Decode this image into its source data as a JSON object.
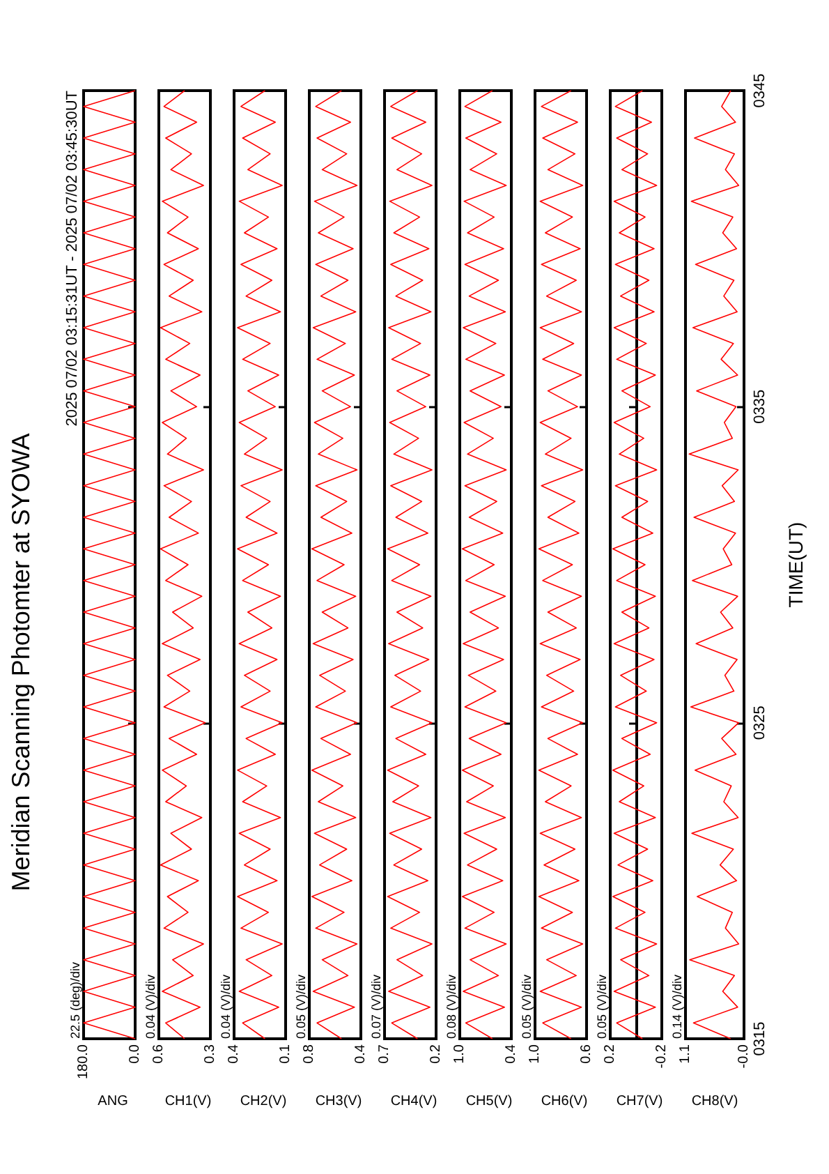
{
  "chart_data": [
    {
      "type": "line",
      "title": "Meridian Scanning Photomter at SYOWA",
      "subtitle": "2025 07/02 03:15:31UT - 2025 07/02 03:45:30UT",
      "annotations": [
        "22.5 (deg)/div"
      ],
      "xlabel": "ANG",
      "color": "#ff0000",
      "tick_labels": "x",
      "ylim": [
        315,
        345
      ],
      "yticks": [
        {
          "value": 325,
          "label": null
        },
        {
          "value": 335,
          "label": null
        }
      ],
      "xlim": [
        180,
        0
      ],
      "xticks": [
        {
          "value": 180,
          "label": "180.0"
        },
        {
          "value": 0,
          "label": "0.0"
        }
      ],
      "values": [
        315,
        315.5,
        316,
        316.5,
        317,
        317.5,
        318,
        318.5,
        319,
        319.5,
        320,
        320.5,
        321,
        321.5,
        322,
        322.5,
        323,
        323.5,
        324,
        324.5,
        325,
        325.5,
        326,
        326.5,
        327,
        327.5,
        328,
        328.5,
        329,
        329.5,
        330,
        330.5,
        331,
        331.5,
        332,
        332.5,
        333,
        333.5,
        334,
        334.5,
        335,
        335.5,
        336,
        336.5,
        337,
        337.5,
        338,
        338.5,
        339,
        339.5,
        340,
        340.5,
        341,
        341.5,
        342,
        342.5,
        343,
        343.5,
        344,
        344.5,
        345
      ],
      "x": [
        0,
        180,
        0,
        180,
        0,
        180,
        0,
        180,
        0,
        180,
        0,
        180,
        0,
        180,
        0,
        180,
        0,
        180,
        0,
        180,
        0,
        180,
        0,
        180,
        0,
        180,
        0,
        180,
        0,
        180,
        0,
        180,
        0,
        180,
        0,
        180,
        0,
        180,
        0,
        180,
        0,
        180,
        0,
        180,
        0,
        180,
        0,
        180,
        0,
        180,
        0,
        180,
        0,
        180,
        0,
        180,
        0,
        180,
        0,
        180,
        0
      ]
    },
    {
      "type": "line",
      "annotations": [
        "0.04 (V)/div"
      ],
      "xlabel": "CH1(V)",
      "color": "#ff0000",
      "tick_labels": "x",
      "ylim": [
        315,
        345
      ],
      "yticks": [
        {
          "value": 325,
          "label": null
        },
        {
          "value": 335,
          "label": null
        }
      ],
      "xlim": [
        0.6,
        0.3
      ],
      "xticks": [
        0.6,
        0.3
      ],
      "values": [
        315,
        315.5,
        316,
        316.5,
        317,
        317.5,
        318,
        318.5,
        319,
        319.5,
        320,
        320.5,
        321,
        321.5,
        322,
        322.5,
        323,
        323.5,
        324,
        324.5,
        325,
        325.5,
        326,
        326.5,
        327,
        327.5,
        328,
        328.5,
        329,
        329.5,
        330,
        330.5,
        331,
        331.5,
        332,
        332.5,
        333,
        333.5,
        334,
        334.5,
        335,
        335.5,
        336,
        336.5,
        337,
        337.5,
        338,
        338.5,
        339,
        339.5,
        340,
        340.5,
        341,
        341.5,
        342,
        342.5,
        343,
        343.5,
        344,
        344.5,
        345
      ],
      "x": [
        0.45,
        0.56,
        0.36,
        0.58,
        0.4,
        0.52,
        0.34,
        0.57,
        0.43,
        0.55,
        0.37,
        0.59,
        0.41,
        0.53,
        0.35,
        0.56,
        0.44,
        0.58,
        0.38,
        0.54,
        0.33,
        0.57,
        0.42,
        0.55,
        0.36,
        0.58,
        0.4,
        0.52,
        0.35,
        0.56,
        0.43,
        0.59,
        0.37,
        0.54,
        0.41,
        0.57,
        0.34,
        0.55,
        0.44,
        0.58,
        0.38,
        0.53,
        0.36,
        0.56,
        0.42,
        0.59,
        0.35,
        0.54,
        0.4,
        0.57,
        0.37,
        0.55,
        0.43,
        0.58,
        0.34,
        0.53,
        0.41,
        0.56,
        0.38,
        0.57,
        0.45
      ]
    },
    {
      "type": "line",
      "annotations": [
        "0.04 (V)/div"
      ],
      "xlabel": "CH2(V)",
      "color": "#ff0000",
      "tick_labels": "x",
      "ylim": [
        315,
        345
      ],
      "yticks": [
        {
          "value": 325,
          "label": null
        },
        {
          "value": 335,
          "label": null
        }
      ],
      "xlim": [
        0.4,
        0.1
      ],
      "xticks": [
        0.4,
        0.1
      ],
      "values": [
        315,
        315.5,
        316,
        316.5,
        317,
        317.5,
        318,
        318.5,
        319,
        319.5,
        320,
        320.5,
        321,
        321.5,
        322,
        322.5,
        323,
        323.5,
        324,
        324.5,
        325,
        325.5,
        326,
        326.5,
        327,
        327.5,
        328,
        328.5,
        329,
        329.5,
        330,
        330.5,
        331,
        331.5,
        332,
        332.5,
        333,
        333.5,
        334,
        334.5,
        335,
        335.5,
        336,
        336.5,
        337,
        337.5,
        338,
        338.5,
        339,
        339.5,
        340,
        340.5,
        341,
        341.5,
        342,
        342.5,
        343,
        343.5,
        344,
        344.5,
        345
      ],
      "x": [
        0.22,
        0.35,
        0.14,
        0.37,
        0.18,
        0.33,
        0.12,
        0.36,
        0.2,
        0.38,
        0.15,
        0.34,
        0.19,
        0.37,
        0.13,
        0.35,
        0.21,
        0.38,
        0.16,
        0.33,
        0.12,
        0.36,
        0.19,
        0.34,
        0.15,
        0.37,
        0.18,
        0.32,
        0.13,
        0.35,
        0.2,
        0.38,
        0.15,
        0.33,
        0.19,
        0.36,
        0.12,
        0.34,
        0.21,
        0.37,
        0.16,
        0.32,
        0.14,
        0.35,
        0.19,
        0.38,
        0.13,
        0.33,
        0.18,
        0.36,
        0.15,
        0.34,
        0.2,
        0.37,
        0.12,
        0.32,
        0.19,
        0.35,
        0.16,
        0.36,
        0.22
      ]
    },
    {
      "type": "line",
      "annotations": [
        "0.05 (V)/div"
      ],
      "xlabel": "CH3(V)",
      "color": "#ff0000",
      "tick_labels": "x",
      "ylim": [
        315,
        345
      ],
      "yticks": [
        {
          "value": 325,
          "label": null
        },
        {
          "value": 335,
          "label": null
        }
      ],
      "xlim": [
        0.8,
        0.4
      ],
      "xticks": [
        0.8,
        0.4
      ],
      "values": [
        315,
        315.5,
        316,
        316.5,
        317,
        317.5,
        318,
        318.5,
        319,
        319.5,
        320,
        320.5,
        321,
        321.5,
        322,
        322.5,
        323,
        323.5,
        324,
        324.5,
        325,
        325.5,
        326,
        326.5,
        327,
        327.5,
        328,
        328.5,
        329,
        329.5,
        330,
        330.5,
        331,
        331.5,
        332,
        332.5,
        333,
        333.5,
        334,
        334.5,
        335,
        335.5,
        336,
        336.5,
        337,
        337.5,
        338,
        338.5,
        339,
        339.5,
        340,
        340.5,
        341,
        341.5,
        342,
        342.5,
        343,
        343.5,
        344,
        344.5,
        345
      ],
      "x": [
        0.55,
        0.74,
        0.45,
        0.77,
        0.5,
        0.7,
        0.43,
        0.75,
        0.53,
        0.78,
        0.47,
        0.72,
        0.51,
        0.76,
        0.44,
        0.73,
        0.54,
        0.78,
        0.48,
        0.71,
        0.43,
        0.75,
        0.52,
        0.72,
        0.46,
        0.77,
        0.5,
        0.7,
        0.44,
        0.74,
        0.53,
        0.78,
        0.47,
        0.71,
        0.51,
        0.75,
        0.43,
        0.73,
        0.54,
        0.76,
        0.48,
        0.7,
        0.45,
        0.74,
        0.52,
        0.77,
        0.44,
        0.71,
        0.5,
        0.75,
        0.46,
        0.73,
        0.53,
        0.76,
        0.43,
        0.7,
        0.51,
        0.74,
        0.48,
        0.75,
        0.55
      ]
    },
    {
      "type": "line",
      "annotations": [
        "0.07 (V)/div"
      ],
      "xlabel": "CH4(V)",
      "color": "#ff0000",
      "tick_labels": "x",
      "ylim": [
        315,
        345
      ],
      "yticks": [
        {
          "value": 325,
          "label": null
        },
        {
          "value": 335,
          "label": null
        }
      ],
      "xlim": [
        0.7,
        0.2
      ],
      "xticks": [
        0.7,
        0.2
      ],
      "values": [
        315,
        315.5,
        316,
        316.5,
        317,
        317.5,
        318,
        318.5,
        319,
        319.5,
        320,
        320.5,
        321,
        321.5,
        322,
        322.5,
        323,
        323.5,
        324,
        324.5,
        325,
        325.5,
        326,
        326.5,
        327,
        327.5,
        328,
        328.5,
        329,
        329.5,
        330,
        330.5,
        331,
        331.5,
        332,
        332.5,
        333,
        333.5,
        334,
        334.5,
        335,
        335.5,
        336,
        336.5,
        337,
        337.5,
        338,
        338.5,
        339,
        339.5,
        340,
        340.5,
        341,
        341.5,
        342,
        342.5,
        343,
        343.5,
        344,
        344.5,
        345
      ],
      "x": [
        0.38,
        0.63,
        0.26,
        0.66,
        0.33,
        0.58,
        0.24,
        0.64,
        0.36,
        0.67,
        0.28,
        0.61,
        0.34,
        0.65,
        0.25,
        0.62,
        0.37,
        0.67,
        0.3,
        0.59,
        0.24,
        0.64,
        0.35,
        0.6,
        0.27,
        0.66,
        0.33,
        0.58,
        0.25,
        0.63,
        0.36,
        0.67,
        0.28,
        0.59,
        0.34,
        0.64,
        0.24,
        0.61,
        0.37,
        0.65,
        0.3,
        0.58,
        0.26,
        0.63,
        0.35,
        0.66,
        0.25,
        0.59,
        0.33,
        0.64,
        0.27,
        0.61,
        0.36,
        0.65,
        0.24,
        0.58,
        0.34,
        0.63,
        0.3,
        0.64,
        0.38
      ]
    },
    {
      "type": "line",
      "annotations": [
        "0.08 (V)/div"
      ],
      "xlabel": "CH5(V)",
      "color": "#ff0000",
      "tick_labels": "x",
      "ylim": [
        315,
        345
      ],
      "yticks": [
        {
          "value": 325,
          "label": null
        },
        {
          "value": 335,
          "label": null
        }
      ],
      "xlim": [
        1.0,
        0.4
      ],
      "xticks": [
        {
          "value": 1.0,
          "label": "1.0"
        },
        0.4
      ],
      "values": [
        315,
        315.5,
        316,
        316.5,
        317,
        317.5,
        318,
        318.5,
        319,
        319.5,
        320,
        320.5,
        321,
        321.5,
        322,
        322.5,
        323,
        323.5,
        324,
        324.5,
        325,
        325.5,
        326,
        326.5,
        327,
        327.5,
        328,
        328.5,
        329,
        329.5,
        330,
        330.5,
        331,
        331.5,
        332,
        332.5,
        333,
        333.5,
        334,
        334.5,
        335,
        335.5,
        336,
        336.5,
        337,
        337.5,
        338,
        338.5,
        339,
        339.5,
        340,
        340.5,
        341,
        341.5,
        342,
        342.5,
        343,
        343.5,
        344,
        344.5,
        345
      ],
      "x": [
        0.62,
        0.93,
        0.48,
        0.96,
        0.55,
        0.88,
        0.46,
        0.94,
        0.6,
        0.97,
        0.5,
        0.91,
        0.57,
        0.95,
        0.47,
        0.92,
        0.61,
        0.97,
        0.52,
        0.89,
        0.46,
        0.94,
        0.58,
        0.9,
        0.49,
        0.96,
        0.55,
        0.88,
        0.47,
        0.93,
        0.6,
        0.97,
        0.5,
        0.89,
        0.57,
        0.94,
        0.46,
        0.91,
        0.61,
        0.95,
        0.52,
        0.88,
        0.48,
        0.93,
        0.58,
        0.96,
        0.47,
        0.89,
        0.55,
        0.94,
        0.49,
        0.91,
        0.6,
        0.95,
        0.46,
        0.88,
        0.57,
        0.93,
        0.52,
        0.94,
        0.62
      ]
    },
    {
      "type": "line",
      "annotations": [
        "0.05 (V)/div"
      ],
      "xlabel": "CH6(V)",
      "color": "#ff0000",
      "tick_labels": "x",
      "ylim": [
        315,
        345
      ],
      "yticks": [
        {
          "value": 325,
          "label": null
        },
        {
          "value": 335,
          "label": null
        }
      ],
      "xlim": [
        1.0,
        0.6
      ],
      "xticks": [
        {
          "value": 1.0,
          "label": "1.0"
        },
        0.6
      ],
      "values": [
        315,
        315.5,
        316,
        316.5,
        317,
        317.5,
        318,
        318.5,
        319,
        319.5,
        320,
        320.5,
        321,
        321.5,
        322,
        322.5,
        323,
        323.5,
        324,
        324.5,
        325,
        325.5,
        326,
        326.5,
        327,
        327.5,
        328,
        328.5,
        329,
        329.5,
        330,
        330.5,
        331,
        331.5,
        332,
        332.5,
        333,
        333.5,
        334,
        334.5,
        335,
        335.5,
        336,
        336.5,
        337,
        337.5,
        338,
        338.5,
        339,
        339.5,
        340,
        340.5,
        341,
        341.5,
        342,
        342.5,
        343,
        343.5,
        344,
        344.5,
        345
      ],
      "x": [
        0.72,
        0.94,
        0.64,
        0.96,
        0.68,
        0.91,
        0.63,
        0.95,
        0.71,
        0.97,
        0.66,
        0.93,
        0.69,
        0.96,
        0.64,
        0.92,
        0.72,
        0.97,
        0.67,
        0.9,
        0.63,
        0.95,
        0.7,
        0.91,
        0.65,
        0.96,
        0.68,
        0.9,
        0.64,
        0.94,
        0.71,
        0.97,
        0.66,
        0.9,
        0.69,
        0.95,
        0.63,
        0.92,
        0.72,
        0.96,
        0.67,
        0.9,
        0.64,
        0.94,
        0.7,
        0.96,
        0.64,
        0.91,
        0.68,
        0.95,
        0.65,
        0.92,
        0.71,
        0.96,
        0.63,
        0.9,
        0.69,
        0.94,
        0.67,
        0.95,
        0.72
      ]
    },
    {
      "type": "line",
      "annotations": [
        "0.05 (V)/div"
      ],
      "xlabel": "CH7(V)",
      "color": "#ff0000",
      "tick_labels": "x",
      "ylim": [
        315,
        345
      ],
      "yticks": [
        {
          "value": 325,
          "label": null
        },
        {
          "value": 335,
          "label": null
        }
      ],
      "xlim": [
        0.2,
        -0.2
      ],
      "xticks": [
        0.2,
        -0.2
      ],
      "values": [
        315,
        315.5,
        316,
        316.5,
        317,
        317.5,
        318,
        318.5,
        319,
        319.5,
        320,
        320.5,
        321,
        321.5,
        322,
        322.5,
        323,
        323.5,
        324,
        324.5,
        325,
        325.5,
        326,
        326.5,
        327,
        327.5,
        328,
        328.5,
        329,
        329.5,
        330,
        330.5,
        331,
        331.5,
        332,
        332.5,
        333,
        333.5,
        334,
        334.5,
        335,
        335.5,
        336,
        336.5,
        337,
        337.5,
        338,
        338.5,
        339,
        339.5,
        340,
        340.5,
        341,
        341.5,
        342,
        342.5,
        343,
        343.5,
        344,
        344.5,
        345
      ],
      "x": [
        -0.05,
        0.15,
        -0.15,
        0.17,
        -0.1,
        0.12,
        -0.16,
        0.16,
        -0.07,
        0.18,
        -0.13,
        0.14,
        -0.09,
        0.17,
        -0.15,
        0.13,
        -0.06,
        0.18,
        -0.11,
        0.11,
        -0.16,
        0.16,
        -0.08,
        0.12,
        -0.14,
        0.17,
        -0.1,
        0.11,
        -0.15,
        0.15,
        -0.07,
        0.18,
        -0.13,
        0.11,
        -0.09,
        0.16,
        -0.16,
        0.13,
        -0.06,
        0.17,
        -0.11,
        0.11,
        -0.15,
        0.15,
        -0.08,
        0.17,
        -0.14,
        0.12,
        -0.1,
        0.16,
        -0.14,
        0.13,
        -0.07,
        0.17,
        -0.16,
        0.11,
        -0.09,
        0.15,
        -0.12,
        0.16,
        -0.05
      ]
    },
    {
      "type": "line",
      "annotations": [
        "0.14 (V)/div"
      ],
      "xlabel": "CH8(V)",
      "ylabel": "TIME(UT)",
      "color": "#ff0000",
      "ylim": [
        315,
        345
      ],
      "yticks": [
        {
          "value": 315,
          "label": "0315"
        },
        {
          "value": 325,
          "label": "0325"
        },
        {
          "value": 335,
          "label": "0335"
        },
        {
          "value": 345,
          "label": "0345"
        }
      ],
      "xlim": [
        1.1,
        0
      ],
      "xticks": [
        1.1,
        {
          "value": 0,
          "label": "-0.0"
        }
      ],
      "values": [
        315,
        315.5,
        316,
        316.5,
        317,
        317.5,
        318,
        318.5,
        319,
        319.5,
        320,
        320.5,
        321,
        321.5,
        322,
        322.5,
        323,
        323.5,
        324,
        324.5,
        325,
        325.5,
        326,
        326.5,
        327,
        327.5,
        328,
        328.5,
        329,
        329.5,
        330,
        330.5,
        331,
        331.5,
        332,
        332.5,
        333,
        333.5,
        334,
        334.5,
        335,
        335.5,
        336,
        336.5,
        337,
        337.5,
        338,
        338.5,
        339,
        339.5,
        340,
        340.5,
        341,
        341.5,
        342,
        342.5,
        343,
        343.5,
        344,
        344.5,
        345
      ],
      "x": [
        0.25,
        0.95,
        0.12,
        0.4,
        0.18,
        1.02,
        0.1,
        0.35,
        0.22,
        0.88,
        0.14,
        0.45,
        0.2,
        0.98,
        0.11,
        0.38,
        0.24,
        0.92,
        0.15,
        0.42,
        0.1,
        1.0,
        0.19,
        0.36,
        0.13,
        0.9,
        0.21,
        0.44,
        0.12,
        0.97,
        0.23,
        0.39,
        0.16,
        0.94,
        0.18,
        0.41,
        0.11,
        1.03,
        0.22,
        0.37,
        0.15,
        0.89,
        0.12,
        0.43,
        0.2,
        0.96,
        0.13,
        0.38,
        0.19,
        0.91,
        0.14,
        0.4,
        0.21,
        0.99,
        0.1,
        0.35,
        0.18,
        0.93,
        0.16,
        0.42,
        0.25
      ]
    }
  ]
}
